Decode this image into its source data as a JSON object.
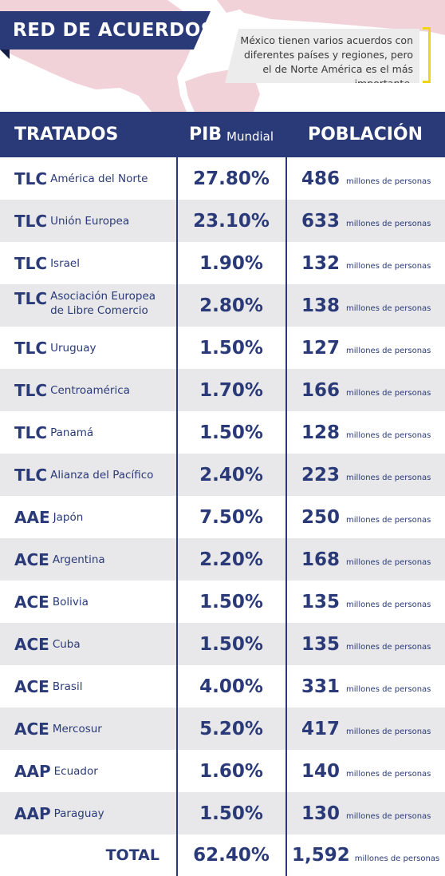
{
  "header": {
    "title": "RED DE ACUERDOS",
    "note": "México tienen varios acuerdos con diferentes países y regiones, pero el de Norte América es el más importante."
  },
  "colors": {
    "primary": "#2a3a78",
    "accent": "#f2d31b",
    "stripe": "#e8e8ea",
    "map": "#f1d2d9"
  },
  "table": {
    "columns": {
      "tratados": "TRATADOS",
      "pib": "PIB",
      "pib_sub": "Mundial",
      "poblacion": "POBLACIÓN"
    },
    "unit": "millones de personas",
    "rows": [
      {
        "kind": "TLC",
        "name": "América del Norte",
        "pib": "27.80%",
        "pop": "486"
      },
      {
        "kind": "TLC",
        "name": "Unión Europea",
        "pib": "23.10%",
        "pop": "633"
      },
      {
        "kind": "TLC",
        "name": "Israel",
        "pib": "1.90%",
        "pop": "132"
      },
      {
        "kind": "TLC",
        "name": "Asociación Europea",
        "name2": "de Libre Comercio",
        "pib": "2.80%",
        "pop": "138"
      },
      {
        "kind": "TLC",
        "name": "Uruguay",
        "pib": "1.50%",
        "pop": "127"
      },
      {
        "kind": "TLC",
        "name": "Centroamérica",
        "pib": "1.70%",
        "pop": "166"
      },
      {
        "kind": "TLC",
        "name": "Panamá",
        "pib": "1.50%",
        "pop": "128"
      },
      {
        "kind": "TLC",
        "name": "Alianza del Pacífico",
        "pib": "2.40%",
        "pop": "223"
      },
      {
        "kind": "AAE",
        "name": "Japón",
        "pib": "7.50%",
        "pop": "250"
      },
      {
        "kind": "ACE",
        "name": "Argentina",
        "pib": "2.20%",
        "pop": "168"
      },
      {
        "kind": "ACE",
        "name": "Bolivia",
        "pib": "1.50%",
        "pop": "135"
      },
      {
        "kind": "ACE",
        "name": "Cuba",
        "pib": "1.50%",
        "pop": "135"
      },
      {
        "kind": "ACE",
        "name": "Brasil",
        "pib": "4.00%",
        "pop": "331"
      },
      {
        "kind": "ACE",
        "name": "Mercosur",
        "pib": "5.20%",
        "pop": "417"
      },
      {
        "kind": "AAP",
        "name": "Ecuador",
        "pib": "1.60%",
        "pop": "140"
      },
      {
        "kind": "AAP",
        "name": "Paraguay",
        "pib": "1.50%",
        "pop": "130"
      }
    ],
    "total": {
      "label": "TOTAL",
      "pib": "62.40%",
      "pop": "1,592"
    }
  },
  "chart_data": {
    "type": "table",
    "columns": [
      "TRATADOS",
      "PIB Mundial",
      "POBLACIÓN"
    ],
    "categories": [
      "TLC América del Norte",
      "TLC Unión Europea",
      "TLC Israel",
      "TLC Asociación Europea de Libre Comercio",
      "TLC Uruguay",
      "TLC Centroamérica",
      "TLC Panamá",
      "TLC Alianza del Pacífico",
      "AAE Japón",
      "ACE Argentina",
      "ACE Bolivia",
      "ACE Cuba",
      "ACE Brasil",
      "ACE Mercosur",
      "AAP Ecuador",
      "AAP Paraguay"
    ],
    "series": [
      {
        "name": "PIB Mundial",
        "values": [
          27.8,
          23.1,
          1.9,
          2.8,
          1.5,
          1.7,
          1.5,
          2.4,
          7.5,
          2.2,
          1.5,
          1.5,
          4.0,
          5.2,
          1.6,
          1.5
        ]
      },
      {
        "name": "POBLACIÓN",
        "values": [
          486,
          633,
          132,
          138,
          127,
          166,
          128,
          223,
          250,
          168,
          135,
          135,
          331,
          417,
          140,
          130
        ]
      }
    ],
    "totals": {
      "PIB Mundial": 62.4,
      "POBLACIÓN": 1592
    }
  }
}
